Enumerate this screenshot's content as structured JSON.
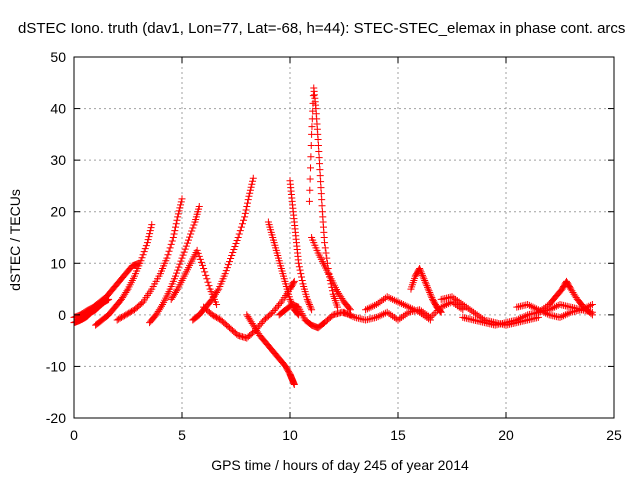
{
  "chart_data": {
    "type": "scatter",
    "title": "dSTEC Iono. truth (dav1, Lon=77, Lat=-68, h=44): STEC-STEC_elemax in phase cont. arcs",
    "xlabel": "GPS time / hours of day 245 of year 2014",
    "ylabel": "dSTEC  / TECUs",
    "xlim": [
      0,
      25
    ],
    "ylim": [
      -20,
      50
    ],
    "x_ticks": [
      0,
      5,
      10,
      15,
      20,
      25
    ],
    "y_ticks": [
      -20,
      -10,
      0,
      10,
      20,
      30,
      40,
      50
    ],
    "x_tick_labels": [
      "0",
      "5",
      "10",
      "15",
      "20",
      "25"
    ],
    "y_tick_labels": [
      "-20",
      "-10",
      "0",
      "10",
      "20",
      "30",
      "40",
      "50"
    ],
    "grid": true,
    "marker": "plus",
    "color": "#ff0000",
    "series": [
      {
        "name": "",
        "x": [
          0.0,
          0.2,
          0.4,
          0.6,
          0.8,
          1.0,
          1.2,
          1.4,
          1.6
        ],
        "y": [
          -1.5,
          -1.2,
          -0.8,
          -0.3,
          0.5,
          1.0,
          1.8,
          2.5,
          3.0
        ]
      },
      {
        "name": "",
        "x": [
          0.0,
          0.3,
          0.6,
          0.9,
          1.2,
          1.5,
          1.8,
          2.1,
          2.4,
          2.7,
          3.0
        ],
        "y": [
          -0.5,
          0.0,
          0.8,
          1.5,
          2.5,
          3.5,
          5.0,
          6.5,
          8.0,
          9.5,
          10.0
        ]
      },
      {
        "name": "",
        "x": [
          1.0,
          1.3,
          1.6,
          1.9,
          2.2,
          2.5,
          2.8,
          3.1,
          3.4,
          3.6
        ],
        "y": [
          -2.0,
          -1.0,
          0.0,
          1.5,
          3.0,
          5.0,
          7.5,
          10.5,
          14.0,
          17.5
        ]
      },
      {
        "name": "",
        "x": [
          2.0,
          2.4,
          2.8,
          3.2,
          3.6,
          4.0,
          4.3,
          4.6,
          4.8,
          5.0
        ],
        "y": [
          -1.0,
          0.0,
          1.0,
          2.5,
          5.0,
          8.0,
          11.0,
          15.0,
          19.0,
          22.5
        ]
      },
      {
        "name": "",
        "x": [
          3.5,
          3.8,
          4.1,
          4.4,
          4.7,
          5.0,
          5.3,
          5.6,
          5.8
        ],
        "y": [
          -1.5,
          0.0,
          2.0,
          4.5,
          7.5,
          11.0,
          14.5,
          18.0,
          21.0
        ]
      },
      {
        "name": "",
        "x": [
          5.5,
          5.8,
          6.1,
          6.4,
          6.7,
          7.0,
          7.3,
          7.6,
          7.9,
          8.1,
          8.3
        ],
        "y": [
          -1.0,
          0.0,
          1.5,
          3.0,
          5.0,
          8.0,
          11.5,
          15.0,
          19.0,
          23.0,
          26.5
        ]
      },
      {
        "name": "",
        "x": [
          4.5,
          4.8,
          5.1,
          5.4,
          5.7,
          6.0,
          6.3,
          6.6
        ],
        "y": [
          3.0,
          5.0,
          7.5,
          10.0,
          12.5,
          9.0,
          5.0,
          2.0
        ]
      },
      {
        "name": "",
        "x": [
          6.0,
          6.4,
          6.8,
          7.2,
          7.6,
          8.0,
          8.4,
          8.8,
          9.2,
          9.6,
          10.0,
          10.2
        ],
        "y": [
          1.5,
          0.0,
          -1.0,
          -2.5,
          -4.0,
          -4.5,
          -3.0,
          -1.0,
          0.5,
          2.5,
          5.0,
          6.5
        ]
      },
      {
        "name": "",
        "x": [
          9.0,
          9.2,
          9.4,
          9.6,
          9.8,
          10.0,
          10.2,
          10.4
        ],
        "y": [
          18.0,
          15.0,
          12.0,
          9.0,
          6.0,
          3.0,
          1.0,
          0.0
        ]
      },
      {
        "name": "",
        "x": [
          8.0,
          8.3,
          8.6,
          8.9,
          9.2,
          9.5,
          9.8,
          10.0,
          10.1,
          10.2
        ],
        "y": [
          0.0,
          -2.0,
          -4.0,
          -5.5,
          -7.0,
          -8.5,
          -10.0,
          -11.5,
          -12.5,
          -13.5
        ]
      },
      {
        "name": "",
        "x": [
          10.0,
          10.1,
          10.2,
          10.3,
          10.4,
          10.6,
          10.8,
          11.0
        ],
        "y": [
          26.0,
          22.0,
          18.0,
          14.0,
          10.0,
          6.0,
          3.0,
          1.0
        ]
      },
      {
        "name": "",
        "x": [
          10.9,
          11.0,
          11.1,
          11.2,
          11.3,
          11.4,
          11.5,
          11.6,
          11.8,
          12.0,
          12.2
        ],
        "y": [
          22.0,
          35.0,
          44.0,
          40.0,
          34.0,
          27.0,
          20.0,
          14.0,
          8.0,
          4.0,
          1.5
        ]
      },
      {
        "name": "",
        "x": [
          11.0,
          11.3,
          11.6,
          11.9,
          12.2,
          12.5,
          12.8
        ],
        "y": [
          15.0,
          12.0,
          9.5,
          7.0,
          4.5,
          2.5,
          1.0
        ]
      },
      {
        "name": "",
        "x": [
          9.5,
          9.8,
          10.1,
          10.4,
          10.7,
          11.0,
          11.3,
          11.6,
          12.0,
          12.4,
          12.8
        ],
        "y": [
          0.0,
          1.0,
          2.0,
          1.5,
          -1.0,
          -2.0,
          -2.5,
          -1.5,
          0.0,
          0.5,
          0.0
        ]
      },
      {
        "name": "",
        "x": [
          12.5,
          13.0,
          13.5,
          14.0,
          14.5,
          15.0,
          15.5,
          16.0,
          16.5,
          17.0,
          17.5,
          18.0
        ],
        "y": [
          0.5,
          -0.5,
          -1.0,
          -0.5,
          0.5,
          -1.0,
          0.5,
          1.0,
          -0.5,
          1.5,
          2.5,
          1.0
        ]
      },
      {
        "name": "",
        "x": [
          13.5,
          14.0,
          14.5,
          15.0,
          15.5,
          16.0,
          16.5
        ],
        "y": [
          1.0,
          2.0,
          3.5,
          2.5,
          1.5,
          0.5,
          -1.0
        ]
      },
      {
        "name": "",
        "x": [
          15.6,
          15.8,
          16.0,
          16.2,
          16.4,
          16.6,
          16.8,
          17.0
        ],
        "y": [
          5.0,
          7.5,
          9.0,
          7.0,
          5.0,
          3.0,
          1.5,
          0.5
        ]
      },
      {
        "name": "",
        "x": [
          17.0,
          17.5,
          18.0,
          18.5,
          19.0,
          19.5,
          20.0,
          20.5,
          21.0,
          21.5
        ],
        "y": [
          3.0,
          3.5,
          2.0,
          0.5,
          -1.0,
          -1.5,
          -2.0,
          -1.5,
          -1.0,
          -0.5
        ]
      },
      {
        "name": "",
        "x": [
          18.0,
          18.5,
          19.0,
          19.5,
          20.0,
          20.5,
          21.0,
          21.5,
          22.0,
          22.5,
          23.0,
          23.5,
          24.0
        ],
        "y": [
          -0.5,
          -1.0,
          -1.5,
          -2.0,
          -1.5,
          -1.0,
          0.0,
          0.5,
          1.0,
          2.0,
          1.5,
          1.0,
          0.5
        ]
      },
      {
        "name": "",
        "x": [
          21.5,
          22.0,
          22.3,
          22.6,
          22.8,
          23.0,
          23.3,
          23.6,
          24.0
        ],
        "y": [
          0.5,
          2.0,
          3.5,
          5.0,
          6.5,
          5.0,
          3.0,
          1.5,
          0.0
        ]
      },
      {
        "name": "",
        "x": [
          20.5,
          21.0,
          21.5,
          22.0,
          22.5,
          23.0,
          23.5,
          24.0
        ],
        "y": [
          1.5,
          2.0,
          1.0,
          0.0,
          -0.5,
          0.5,
          1.0,
          2.0
        ]
      }
    ]
  }
}
